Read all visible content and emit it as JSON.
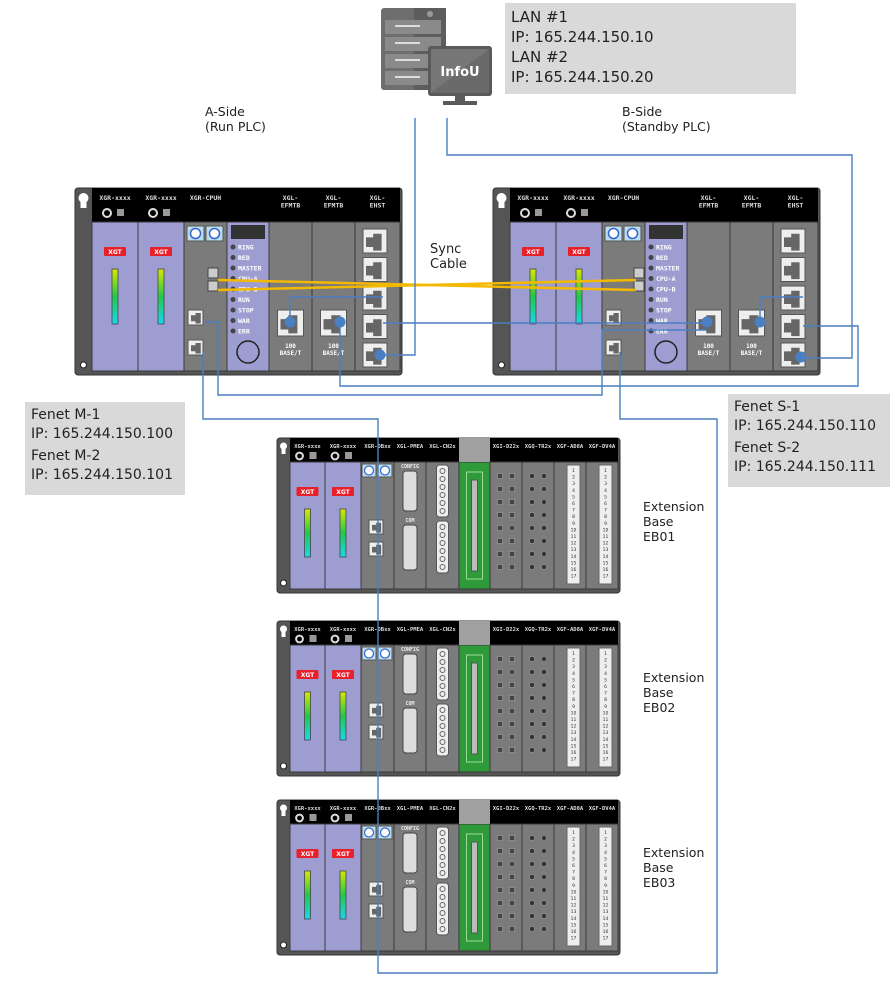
{
  "server": {
    "label": "InfoU"
  },
  "lan_box": {
    "lines": [
      "LAN #1",
      "IP: 165.244.150.10",
      "LAN #2",
      "IP: 165.244.150.20"
    ]
  },
  "a_side": {
    "title": "A-Side",
    "subtitle": "(Run PLC)"
  },
  "b_side": {
    "title": "B-Side",
    "subtitle": "(Standby PLC)"
  },
  "sync_cable": {
    "line1": "Sync",
    "line2": "Cable"
  },
  "fenet_m": {
    "lines": [
      "Fenet M-1",
      "IP: 165.244.150.100",
      "Fenet M-2",
      "IP: 165.244.150.101"
    ]
  },
  "fenet_s": {
    "lines": [
      "Fenet S-1",
      "IP: 165.244.150.110",
      "Fenet S-2",
      "IP: 165.244.150.111"
    ]
  },
  "main_rack": {
    "modules": [
      {
        "type": "power",
        "header": "XGR-xxxx",
        "badge": "XGT"
      },
      {
        "type": "power",
        "header": "XGR-xxxx",
        "badge": "XGT"
      },
      {
        "type": "cpu",
        "header": "XGR-CPUH"
      },
      {
        "type": "led",
        "header": "",
        "leds": [
          "RING",
          "RED",
          "MASTER",
          "CPU-A",
          "CPU-B",
          "RUN",
          "STOP",
          "WAR",
          "ERR"
        ]
      },
      {
        "type": "efm",
        "header": "XGL-\nEFMTB",
        "port_label": "100\nBASE/T"
      },
      {
        "type": "efm",
        "header": "XGL-\nEFMTB",
        "port_label": "100\nBASE/T"
      },
      {
        "type": "ehst",
        "header": "XGL-\nEHST"
      }
    ]
  },
  "ext_rack": {
    "modules": [
      {
        "type": "power",
        "header": "XGR-xxxx",
        "badge": "XGT"
      },
      {
        "type": "power",
        "header": "XGR-xxxx",
        "badge": "XGT"
      },
      {
        "type": "db",
        "header": "XGR-DBxx"
      },
      {
        "type": "pmea",
        "header": "XGL-PMEA",
        "port1": "CONFIG",
        "port2": "COM"
      },
      {
        "type": "cn2x",
        "header": "XGL-CN2x"
      },
      {
        "type": "green",
        "header": ""
      },
      {
        "type": "d22",
        "header": "XGI-D22x"
      },
      {
        "type": "tr2",
        "header": "XGQ-TR2x"
      },
      {
        "type": "ad8a",
        "header": "XGF-AD8A"
      },
      {
        "type": "ad8a",
        "header": "XGF-DV4A"
      }
    ],
    "terminal_numbers": [
      "1",
      "2",
      "3",
      "4",
      "5",
      "6",
      "7",
      "8",
      "9",
      "10",
      "11",
      "12",
      "13",
      "14",
      "15",
      "16",
      "17",
      "18"
    ]
  },
  "extension_bases": [
    {
      "l1": "Extension",
      "l2": "Base",
      "l3": "EB01"
    },
    {
      "l1": "Extension",
      "l2": "Base",
      "l3": "EB02"
    },
    {
      "l1": "Extension",
      "l2": "Base",
      "l3": "EB03"
    }
  ],
  "colors": {
    "cable": "#4a7fc1",
    "sync": "#f2b900",
    "purple": "#9d9dd2",
    "module_gray": "#7b7b7b",
    "green": "#2f9a3a",
    "badge": "#e8202a"
  }
}
